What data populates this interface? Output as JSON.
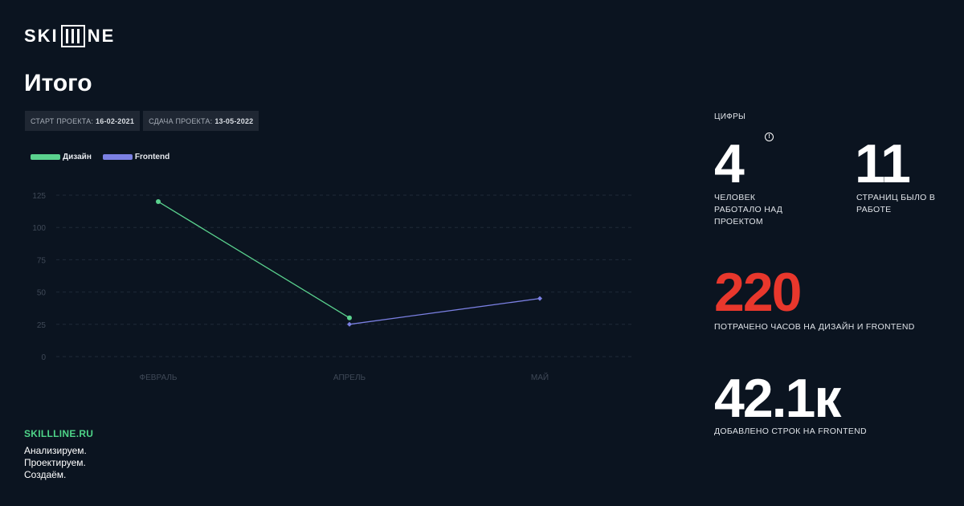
{
  "brand": {
    "logo_left": "SKI",
    "logo_right": "NE",
    "site": "SKILLLINE.RU",
    "tagline": [
      "Анализируем.",
      "Проектируем.",
      "Создаём."
    ]
  },
  "page": {
    "title": "Итого"
  },
  "dates": {
    "start_label": "СТАРТ ПРОЕКТА:",
    "start_value": "16-02-2021",
    "end_label": "СДАЧА ПРОЕКТА:",
    "end_value": "13-05-2022"
  },
  "stats": {
    "section_label": "ЦИФРЫ",
    "people": {
      "value": "4",
      "desc": [
        "ЧЕЛОВЕК",
        "РАБОТАЛО НАД",
        "ПРОЕКТОМ"
      ]
    },
    "pages": {
      "value": "11",
      "desc": [
        "СТРАНИЦ БЫЛО В",
        "РАБОТЕ"
      ]
    },
    "hours": {
      "value": "220",
      "desc": "ПОТРАЧЕНО ЧАСОВ НА ДИЗАЙН И FRONTEND",
      "color": "#e8372c"
    },
    "lines": {
      "value": "42.1к",
      "desc": "ДОБАВЛЕНО СТРОК НА FRONTEND"
    }
  },
  "chart_data": {
    "type": "line",
    "categories": [
      "ФЕВРАЛЬ",
      "АПРЕЛЬ",
      "МАЙ"
    ],
    "yticks": [
      0,
      25,
      50,
      75,
      100,
      125
    ],
    "ylim": [
      0,
      125
    ],
    "grid": true,
    "legend": "top-left",
    "series": [
      {
        "name": "Дизайн",
        "color": "#5ad28e",
        "points": [
          [
            0,
            120
          ],
          [
            1,
            30
          ]
        ]
      },
      {
        "name": "Frontend",
        "color": "#7b80e3",
        "points": [
          [
            1,
            25
          ],
          [
            2,
            45
          ]
        ]
      }
    ]
  }
}
